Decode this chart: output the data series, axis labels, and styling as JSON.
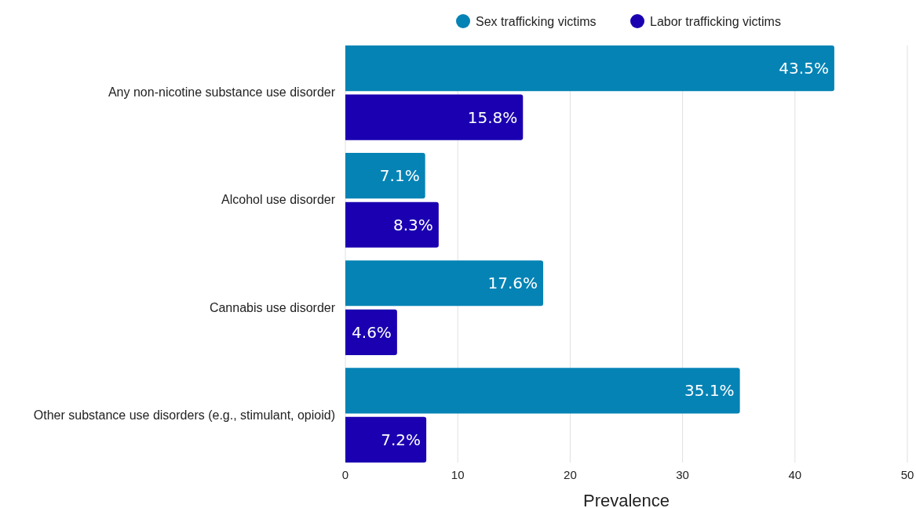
{
  "chart_data": {
    "type": "bar",
    "orientation": "horizontal",
    "xlabel": "Prevalence",
    "categories": [
      "Any non-nicotine substance use disorder",
      "Alcohol use disorder",
      "Cannabis use disorder",
      "Other substance use disorders (e.g., stimulant, opioid)"
    ],
    "series": [
      {
        "name": "Sex trafficking victims",
        "color": "#0583b5",
        "values": [
          43.5,
          7.1,
          17.6,
          35.1
        ],
        "value_labels": [
          "43.5%",
          "7.1%",
          "17.6%",
          "35.1%"
        ]
      },
      {
        "name": "Labor trafficking victims",
        "color": "#1a00b0",
        "values": [
          15.8,
          8.3,
          4.6,
          7.2
        ],
        "value_labels": [
          "15.8%",
          "8.3%",
          "4.6%",
          "7.2%"
        ]
      }
    ],
    "xlim": [
      0,
      50
    ],
    "xticks": [
      0,
      10,
      20,
      30,
      40,
      50
    ],
    "grid": "x",
    "legend": "top"
  }
}
